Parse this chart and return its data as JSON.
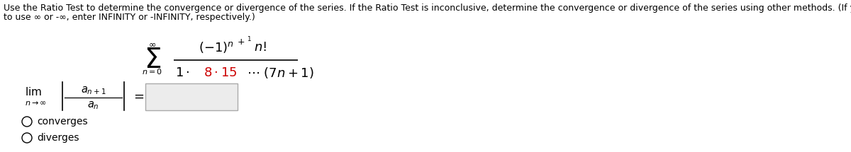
{
  "bg_color": "#ffffff",
  "text_color": "#000000",
  "red_color": "#cc0000",
  "header_line1": "Use the Ratio Test to determine the convergence or divergence of the series. If the Ratio Test is inconclusive, determine the convergence or divergence of the series using other methods. (If you need",
  "header_line2": "to use ∞ or -∞, enter INFINITY or -INFINITY, respectively.)",
  "header_fontsize": 9.0,
  "radio_fontsize": 10.0
}
